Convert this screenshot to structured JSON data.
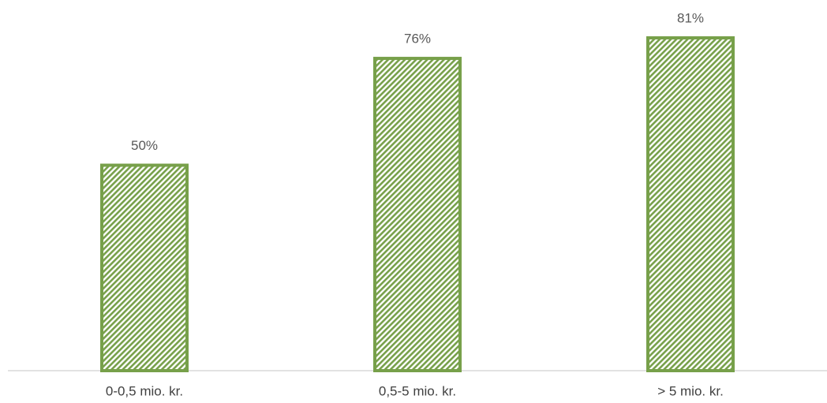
{
  "chart_data": {
    "type": "bar",
    "categories": [
      "0-0,5 mio. kr.",
      "0,5-5 mio. kr.",
      "> 5 mio. kr."
    ],
    "values": [
      50,
      76,
      81
    ],
    "value_labels": [
      "50%",
      "76%",
      "81%"
    ],
    "color": "#77a04a"
  }
}
